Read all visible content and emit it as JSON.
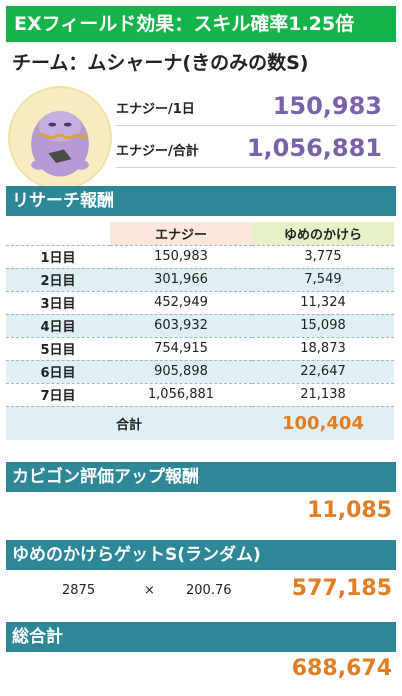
{
  "banner": {
    "text": "EXフィールド効果：スキル確率1.25倍"
  },
  "team": {
    "title": "チーム：ムシャーナ(きのみの数S)"
  },
  "stats": {
    "daily_label": "エナジー/1日",
    "daily_value": "150,983",
    "total_label": "エナジー/合計",
    "total_value": "1,056,881"
  },
  "research": {
    "heading": "リサーチ報酬",
    "columns": {
      "energy": "エナジー",
      "dream": "ゆめのかけら"
    },
    "rows": [
      {
        "day": "1日目",
        "energy": "150,983",
        "dream": "3,775"
      },
      {
        "day": "2日目",
        "energy": "301,966",
        "dream": "7,549"
      },
      {
        "day": "3日目",
        "energy": "452,949",
        "dream": "11,324"
      },
      {
        "day": "4日目",
        "energy": "603,932",
        "dream": "15,098"
      },
      {
        "day": "5日目",
        "energy": "754,915",
        "dream": "18,873"
      },
      {
        "day": "6日目",
        "energy": "905,898",
        "dream": "22,647"
      },
      {
        "day": "7日目",
        "energy": "1,056,881",
        "dream": "21,138"
      }
    ],
    "total_label": "合計",
    "total_value": "100,404"
  },
  "kabigon": {
    "heading": "カビゴン評価アップ報酬",
    "value": "11,085"
  },
  "dream_get": {
    "heading": "ゆめのかけらゲットS(ランダム)",
    "factor_a": "2875",
    "times": "×",
    "factor_b": "200.76",
    "value": "577,185"
  },
  "grand_total": {
    "heading": "総合計",
    "value": "688,674"
  },
  "colors": {
    "banner": "#16b24a",
    "section": "#2e8796",
    "accent_orange": "#e07e25",
    "accent_purple": "#7a62a8"
  }
}
